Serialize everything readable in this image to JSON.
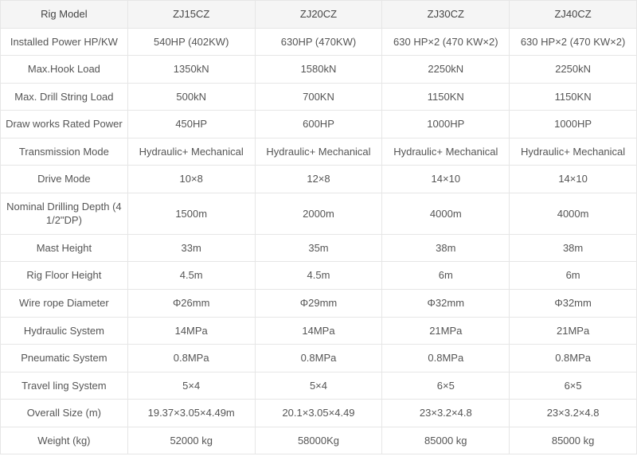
{
  "table": {
    "header_bg": "#f5f5f5",
    "border_color": "#e6e6e6",
    "text_color": "#555555",
    "columns": [
      "Rig Model",
      "ZJ15CZ",
      "ZJ20CZ",
      "ZJ30CZ",
      "ZJ40CZ"
    ],
    "rows": [
      {
        "label": "Installed Power HP/KW",
        "v": [
          "540HP (402KW)",
          "630HP (470KW)",
          "630 HP×2 (470 KW×2)",
          "630 HP×2 (470 KW×2)"
        ]
      },
      {
        "label": "Max.Hook Load",
        "v": [
          "1350kN",
          "1580kN",
          "2250kN",
          "2250kN"
        ]
      },
      {
        "label": "Max. Drill String Load",
        "v": [
          "500kN",
          "700KN",
          "1150KN",
          "1150KN"
        ]
      },
      {
        "label": "Draw works Rated Power",
        "v": [
          "450HP",
          "600HP",
          "1000HP",
          "1000HP"
        ]
      },
      {
        "label": "Transmission Mode",
        "v": [
          "Hydraulic+ Mechanical",
          "Hydraulic+ Mechanical",
          "Hydraulic+ Mechanical",
          "Hydraulic+ Mechanical"
        ]
      },
      {
        "label": "Drive Mode",
        "v": [
          "10×8",
          "12×8",
          "14×10",
          "14×10"
        ]
      },
      {
        "label": "Nominal Drilling Depth (4 1/2\"DP)",
        "v": [
          "1500m",
          "2000m",
          "4000m",
          "4000m"
        ]
      },
      {
        "label": "Mast Height",
        "v": [
          "33m",
          "35m",
          "38m",
          "38m"
        ]
      },
      {
        "label": "Rig Floor Height",
        "v": [
          "4.5m",
          "4.5m",
          "6m",
          "6m"
        ]
      },
      {
        "label": "Wire rope Diameter",
        "v": [
          "Φ26mm",
          "Φ29mm",
          "Φ32mm",
          "Φ32mm"
        ]
      },
      {
        "label": "Hydraulic System",
        "v": [
          "14MPa",
          "14MPa",
          "21MPa",
          "21MPa"
        ]
      },
      {
        "label": "Pneumatic System",
        "v": [
          "0.8MPa",
          "0.8MPa",
          "0.8MPa",
          "0.8MPa"
        ]
      },
      {
        "label": "Travel ling System",
        "v": [
          "5×4",
          "5×4",
          "6×5",
          "6×5"
        ]
      },
      {
        "label": "Overall Size   (m)",
        "v": [
          "19.37×3.05×4.49m",
          "20.1×3.05×4.49",
          "23×3.2×4.8",
          "23×3.2×4.8"
        ]
      },
      {
        "label": "Weight (kg)",
        "v": [
          "52000 kg",
          "58000Kg",
          "85000 kg",
          "85000 kg"
        ]
      }
    ]
  }
}
